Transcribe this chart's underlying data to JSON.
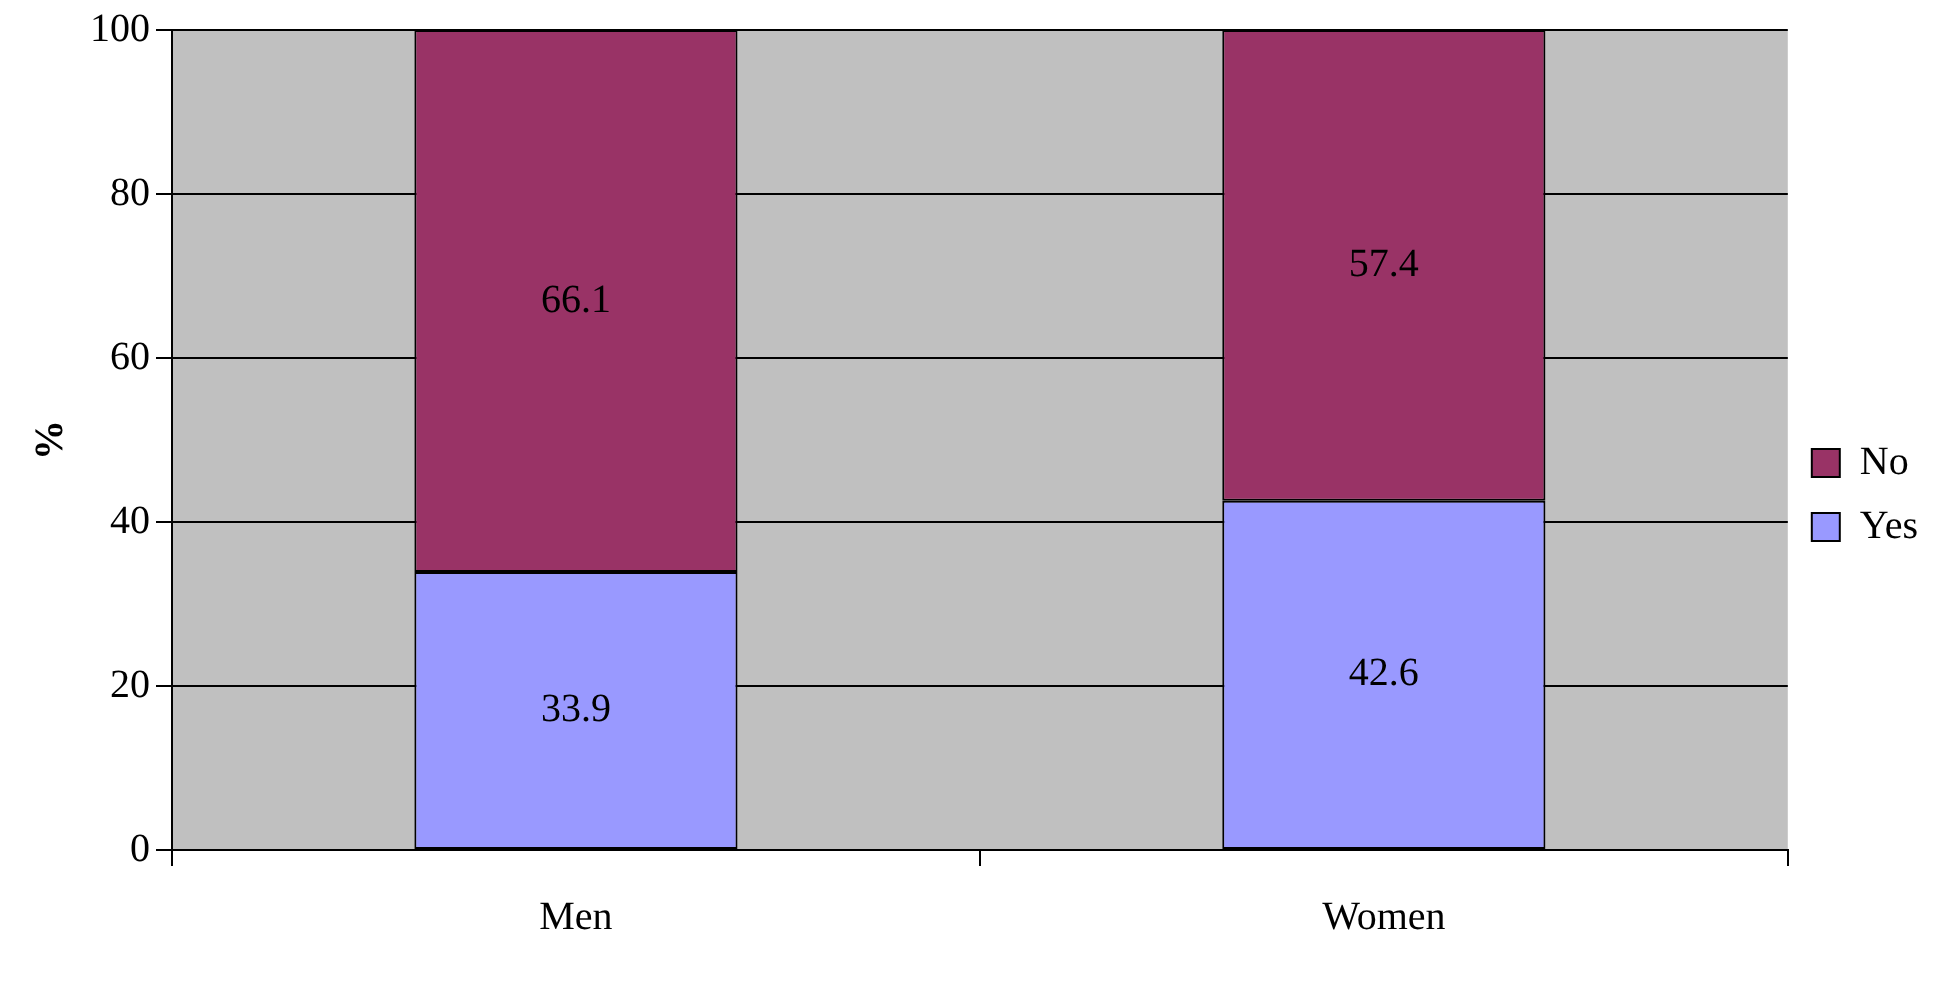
{
  "chart_data": {
    "type": "bar",
    "categories": [
      "Men",
      "Women"
    ],
    "series": [
      {
        "name": "Yes",
        "color": "#9999ff",
        "values": [
          33.9,
          42.6
        ]
      },
      {
        "name": "No",
        "color": "#993366",
        "values": [
          66.1,
          57.4
        ]
      }
    ],
    "stacked": true,
    "ylim": [
      0,
      100
    ],
    "yticks": [
      0,
      20,
      40,
      60,
      80,
      100
    ],
    "ylabel": "%",
    "grid": "y",
    "legend": "right",
    "data_labels": true
  }
}
